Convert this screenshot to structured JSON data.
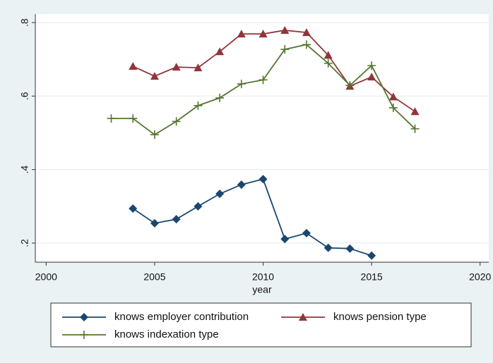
{
  "chart_data": {
    "type": "line",
    "x_label": "year",
    "x": [
      2003,
      2004,
      2005,
      2006,
      2007,
      2008,
      2009,
      2010,
      2011,
      2012,
      2013,
      2014,
      2015,
      2016,
      2017
    ],
    "series": [
      {
        "name": "knows employer contribution",
        "color": "#1a476f",
        "marker": "diamond",
        "values": [
          null,
          0.294,
          0.254,
          0.265,
          0.3,
          0.334,
          0.359,
          0.374,
          0.211,
          0.227,
          0.187,
          0.185,
          0.166,
          null,
          null
        ]
      },
      {
        "name": "knows pension type",
        "color": "#90353b",
        "marker": "triangle",
        "values": [
          null,
          0.681,
          0.654,
          0.679,
          0.677,
          0.721,
          0.769,
          0.769,
          0.779,
          0.773,
          0.711,
          0.627,
          0.652,
          0.598,
          0.558
        ]
      },
      {
        "name": "knows indexation type",
        "color": "#55752f",
        "marker": "plus",
        "values": [
          0.539,
          0.539,
          0.495,
          0.531,
          0.574,
          0.595,
          0.633,
          0.644,
          0.727,
          0.74,
          0.689,
          0.629,
          0.683,
          0.568,
          0.511
        ]
      }
    ],
    "xlim": [
      1999.5,
      2020.4
    ],
    "xticks": [
      2000,
      2005,
      2010,
      2015,
      2020
    ],
    "ylim": [
      0.148,
      0.823
    ],
    "yticks": [
      {
        "value": 0.2,
        "label": ".2"
      },
      {
        "value": 0.4,
        "label": ".4"
      },
      {
        "value": 0.6,
        "label": ".6"
      },
      {
        "value": 0.8,
        "label": ".8"
      }
    ],
    "grid": true
  }
}
